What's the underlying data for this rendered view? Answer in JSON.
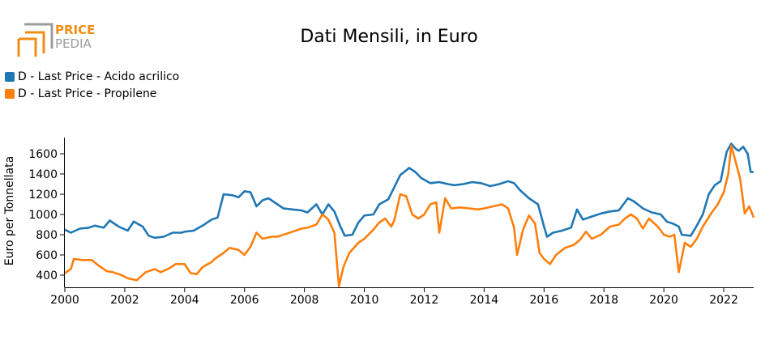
{
  "logo": {
    "word1": "PRICE",
    "word2": "PEDIA"
  },
  "title": "Dati Mensili, in Euro",
  "colors": {
    "acrylic": "#1f77b4",
    "propylene": "#ff7f0e",
    "logo_orange": "#ef8d14",
    "logo_gray": "#9c9c9c"
  },
  "legend": [
    {
      "label": "D - Last Price - Acido acrilico",
      "color": "#1f77b4"
    },
    {
      "label": "D - Last Price - Propilene",
      "color": "#ff7f0e"
    }
  ],
  "chart_data": {
    "type": "line",
    "ylabel": "Euro per Tonnellata",
    "xlabel": "",
    "xlim": [
      2000,
      2023
    ],
    "ylim": [
      280,
      1760
    ],
    "x_ticks": [
      2000,
      2002,
      2004,
      2006,
      2008,
      2010,
      2012,
      2014,
      2016,
      2018,
      2020,
      2022
    ],
    "x_tick_labels": [
      "2000",
      "2002",
      "2004",
      "2006",
      "2008",
      "2010",
      "2012",
      "2014",
      "2016",
      "2018",
      "2020",
      "2022"
    ],
    "y_ticks": [
      400,
      600,
      800,
      1000,
      1200,
      1400,
      1600
    ],
    "y_tick_labels": [
      "400",
      "600",
      "800",
      "1000",
      "1200",
      "1400",
      "1600"
    ],
    "grid": false,
    "series": [
      {
        "name": "D - Last Price - Acido acrilico",
        "color": "#1f77b4",
        "points": [
          [
            2000.0,
            850
          ],
          [
            2000.2,
            820
          ],
          [
            2000.5,
            860
          ],
          [
            2000.8,
            870
          ],
          [
            2001.0,
            890
          ],
          [
            2001.3,
            870
          ],
          [
            2001.5,
            940
          ],
          [
            2001.8,
            880
          ],
          [
            2002.1,
            840
          ],
          [
            2002.3,
            930
          ],
          [
            2002.6,
            880
          ],
          [
            2002.8,
            790
          ],
          [
            2003.0,
            770
          ],
          [
            2003.3,
            780
          ],
          [
            2003.6,
            820
          ],
          [
            2003.9,
            820
          ],
          [
            2004.0,
            830
          ],
          [
            2004.3,
            840
          ],
          [
            2004.6,
            890
          ],
          [
            2004.9,
            950
          ],
          [
            2005.1,
            970
          ],
          [
            2005.3,
            1200
          ],
          [
            2005.6,
            1190
          ],
          [
            2005.8,
            1170
          ],
          [
            2006.0,
            1230
          ],
          [
            2006.2,
            1220
          ],
          [
            2006.4,
            1080
          ],
          [
            2006.6,
            1140
          ],
          [
            2006.8,
            1160
          ],
          [
            2007.0,
            1120
          ],
          [
            2007.3,
            1060
          ],
          [
            2007.6,
            1050
          ],
          [
            2007.9,
            1040
          ],
          [
            2008.1,
            1020
          ],
          [
            2008.4,
            1100
          ],
          [
            2008.6,
            1000
          ],
          [
            2008.8,
            1100
          ],
          [
            2009.0,
            1030
          ],
          [
            2009.2,
            880
          ],
          [
            2009.35,
            790
          ],
          [
            2009.6,
            800
          ],
          [
            2009.8,
            920
          ],
          [
            2010.0,
            990
          ],
          [
            2010.3,
            1000
          ],
          [
            2010.5,
            1100
          ],
          [
            2010.8,
            1150
          ],
          [
            2011.0,
            1270
          ],
          [
            2011.2,
            1390
          ],
          [
            2011.5,
            1460
          ],
          [
            2011.7,
            1420
          ],
          [
            2011.9,
            1360
          ],
          [
            2012.2,
            1310
          ],
          [
            2012.5,
            1320
          ],
          [
            2012.8,
            1300
          ],
          [
            2013.0,
            1290
          ],
          [
            2013.3,
            1300
          ],
          [
            2013.6,
            1320
          ],
          [
            2013.9,
            1310
          ],
          [
            2014.2,
            1280
          ],
          [
            2014.5,
            1300
          ],
          [
            2014.8,
            1330
          ],
          [
            2015.0,
            1310
          ],
          [
            2015.2,
            1240
          ],
          [
            2015.5,
            1160
          ],
          [
            2015.8,
            1100
          ],
          [
            2016.0,
            880
          ],
          [
            2016.1,
            780
          ],
          [
            2016.3,
            820
          ],
          [
            2016.6,
            840
          ],
          [
            2016.9,
            870
          ],
          [
            2017.1,
            1050
          ],
          [
            2017.3,
            950
          ],
          [
            2017.6,
            980
          ],
          [
            2017.9,
            1010
          ],
          [
            2018.2,
            1030
          ],
          [
            2018.5,
            1040
          ],
          [
            2018.8,
            1160
          ],
          [
            2019.0,
            1130
          ],
          [
            2019.3,
            1060
          ],
          [
            2019.6,
            1020
          ],
          [
            2019.9,
            1000
          ],
          [
            2020.1,
            930
          ],
          [
            2020.3,
            910
          ],
          [
            2020.5,
            880
          ],
          [
            2020.6,
            800
          ],
          [
            2020.9,
            790
          ],
          [
            2021.1,
            890
          ],
          [
            2021.3,
            1000
          ],
          [
            2021.5,
            1200
          ],
          [
            2021.7,
            1290
          ],
          [
            2021.9,
            1330
          ],
          [
            2022.0,
            1480
          ],
          [
            2022.1,
            1620
          ],
          [
            2022.25,
            1700
          ],
          [
            2022.4,
            1650
          ],
          [
            2022.5,
            1630
          ],
          [
            2022.65,
            1670
          ],
          [
            2022.8,
            1600
          ],
          [
            2022.9,
            1420
          ],
          [
            2023.0,
            1420
          ]
        ]
      },
      {
        "name": "D - Last Price - Propilene",
        "color": "#ff7f0e",
        "points": [
          [
            2000.0,
            420
          ],
          [
            2000.2,
            460
          ],
          [
            2000.3,
            560
          ],
          [
            2000.6,
            550
          ],
          [
            2000.9,
            550
          ],
          [
            2001.1,
            500
          ],
          [
            2001.4,
            440
          ],
          [
            2001.6,
            430
          ],
          [
            2001.9,
            400
          ],
          [
            2002.1,
            370
          ],
          [
            2002.4,
            350
          ],
          [
            2002.7,
            430
          ],
          [
            2003.0,
            460
          ],
          [
            2003.2,
            430
          ],
          [
            2003.5,
            470
          ],
          [
            2003.7,
            510
          ],
          [
            2003.9,
            510
          ],
          [
            2004.0,
            510
          ],
          [
            2004.2,
            420
          ],
          [
            2004.4,
            410
          ],
          [
            2004.6,
            480
          ],
          [
            2004.9,
            530
          ],
          [
            2005.0,
            560
          ],
          [
            2005.3,
            620
          ],
          [
            2005.5,
            670
          ],
          [
            2005.8,
            650
          ],
          [
            2006.0,
            600
          ],
          [
            2006.2,
            680
          ],
          [
            2006.4,
            820
          ],
          [
            2006.6,
            760
          ],
          [
            2006.9,
            780
          ],
          [
            2007.1,
            780
          ],
          [
            2007.4,
            810
          ],
          [
            2007.6,
            830
          ],
          [
            2007.9,
            860
          ],
          [
            2008.1,
            870
          ],
          [
            2008.4,
            900
          ],
          [
            2008.6,
            1000
          ],
          [
            2008.8,
            950
          ],
          [
            2009.0,
            820
          ],
          [
            2009.15,
            290
          ],
          [
            2009.3,
            480
          ],
          [
            2009.5,
            620
          ],
          [
            2009.8,
            720
          ],
          [
            2010.0,
            760
          ],
          [
            2010.3,
            850
          ],
          [
            2010.5,
            920
          ],
          [
            2010.7,
            960
          ],
          [
            2010.9,
            880
          ],
          [
            2011.0,
            940
          ],
          [
            2011.2,
            1200
          ],
          [
            2011.4,
            1180
          ],
          [
            2011.6,
            1000
          ],
          [
            2011.8,
            960
          ],
          [
            2012.0,
            1000
          ],
          [
            2012.2,
            1100
          ],
          [
            2012.4,
            1120
          ],
          [
            2012.5,
            820
          ],
          [
            2012.7,
            1160
          ],
          [
            2012.9,
            1060
          ],
          [
            2013.2,
            1070
          ],
          [
            2013.5,
            1060
          ],
          [
            2013.8,
            1050
          ],
          [
            2014.0,
            1060
          ],
          [
            2014.3,
            1080
          ],
          [
            2014.6,
            1100
          ],
          [
            2014.8,
            1060
          ],
          [
            2015.0,
            870
          ],
          [
            2015.1,
            600
          ],
          [
            2015.3,
            850
          ],
          [
            2015.5,
            990
          ],
          [
            2015.7,
            910
          ],
          [
            2015.85,
            620
          ],
          [
            2016.0,
            560
          ],
          [
            2016.2,
            510
          ],
          [
            2016.4,
            600
          ],
          [
            2016.7,
            670
          ],
          [
            2017.0,
            700
          ],
          [
            2017.2,
            750
          ],
          [
            2017.4,
            830
          ],
          [
            2017.6,
            760
          ],
          [
            2017.9,
            800
          ],
          [
            2018.2,
            880
          ],
          [
            2018.5,
            900
          ],
          [
            2018.7,
            960
          ],
          [
            2018.9,
            1000
          ],
          [
            2019.1,
            960
          ],
          [
            2019.3,
            860
          ],
          [
            2019.5,
            960
          ],
          [
            2019.8,
            880
          ],
          [
            2020.0,
            800
          ],
          [
            2020.2,
            780
          ],
          [
            2020.35,
            800
          ],
          [
            2020.5,
            430
          ],
          [
            2020.7,
            720
          ],
          [
            2020.9,
            680
          ],
          [
            2021.1,
            760
          ],
          [
            2021.3,
            880
          ],
          [
            2021.6,
            1020
          ],
          [
            2021.8,
            1100
          ],
          [
            2022.0,
            1220
          ],
          [
            2022.15,
            1400
          ],
          [
            2022.25,
            1680
          ],
          [
            2022.4,
            1520
          ],
          [
            2022.55,
            1350
          ],
          [
            2022.7,
            1010
          ],
          [
            2022.85,
            1080
          ],
          [
            2023.0,
            970
          ]
        ]
      }
    ]
  }
}
